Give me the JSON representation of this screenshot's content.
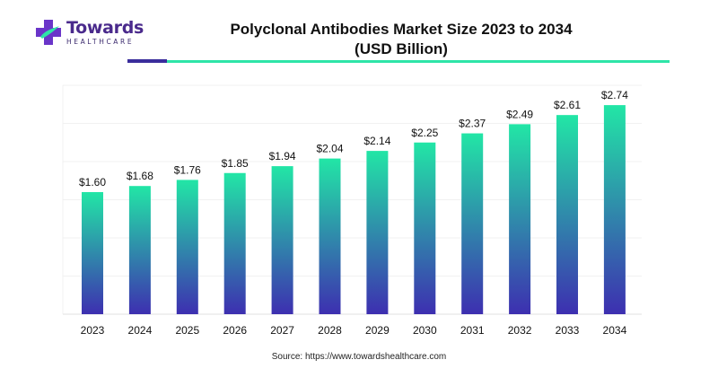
{
  "brand": {
    "name": "Towards",
    "tagline": "HEALTHCARE",
    "colors": {
      "primary": "#4a2a8c",
      "accent": "#2ee5a8",
      "accent_dark": "#3a2d9c"
    }
  },
  "source": "Source: https://www.towardshealthcare.com",
  "chart_data": {
    "type": "bar",
    "title": "Polyclonal Antibodies Market Size 2023 to 2034",
    "subtitle": "(USD Billion)",
    "categories": [
      "2023",
      "2024",
      "2025",
      "2026",
      "2027",
      "2028",
      "2029",
      "2030",
      "2031",
      "2032",
      "2033",
      "2034"
    ],
    "values": [
      1.6,
      1.68,
      1.76,
      1.85,
      1.94,
      2.04,
      2.14,
      2.25,
      2.37,
      2.49,
      2.61,
      2.74
    ],
    "value_labels": [
      "$1.60",
      "$1.68",
      "$1.76",
      "$1.85",
      "$1.94",
      "$2.04",
      "$2.14",
      "$2.25",
      "$2.37",
      "$2.49",
      "$2.61",
      "$2.74"
    ],
    "xlabel": "",
    "ylabel": "",
    "ylim": [
      0,
      3.0
    ],
    "grid": true,
    "legend": "none",
    "bar_gradient": {
      "top": "#22e6a6",
      "bottom": "#3d2fb0"
    }
  }
}
